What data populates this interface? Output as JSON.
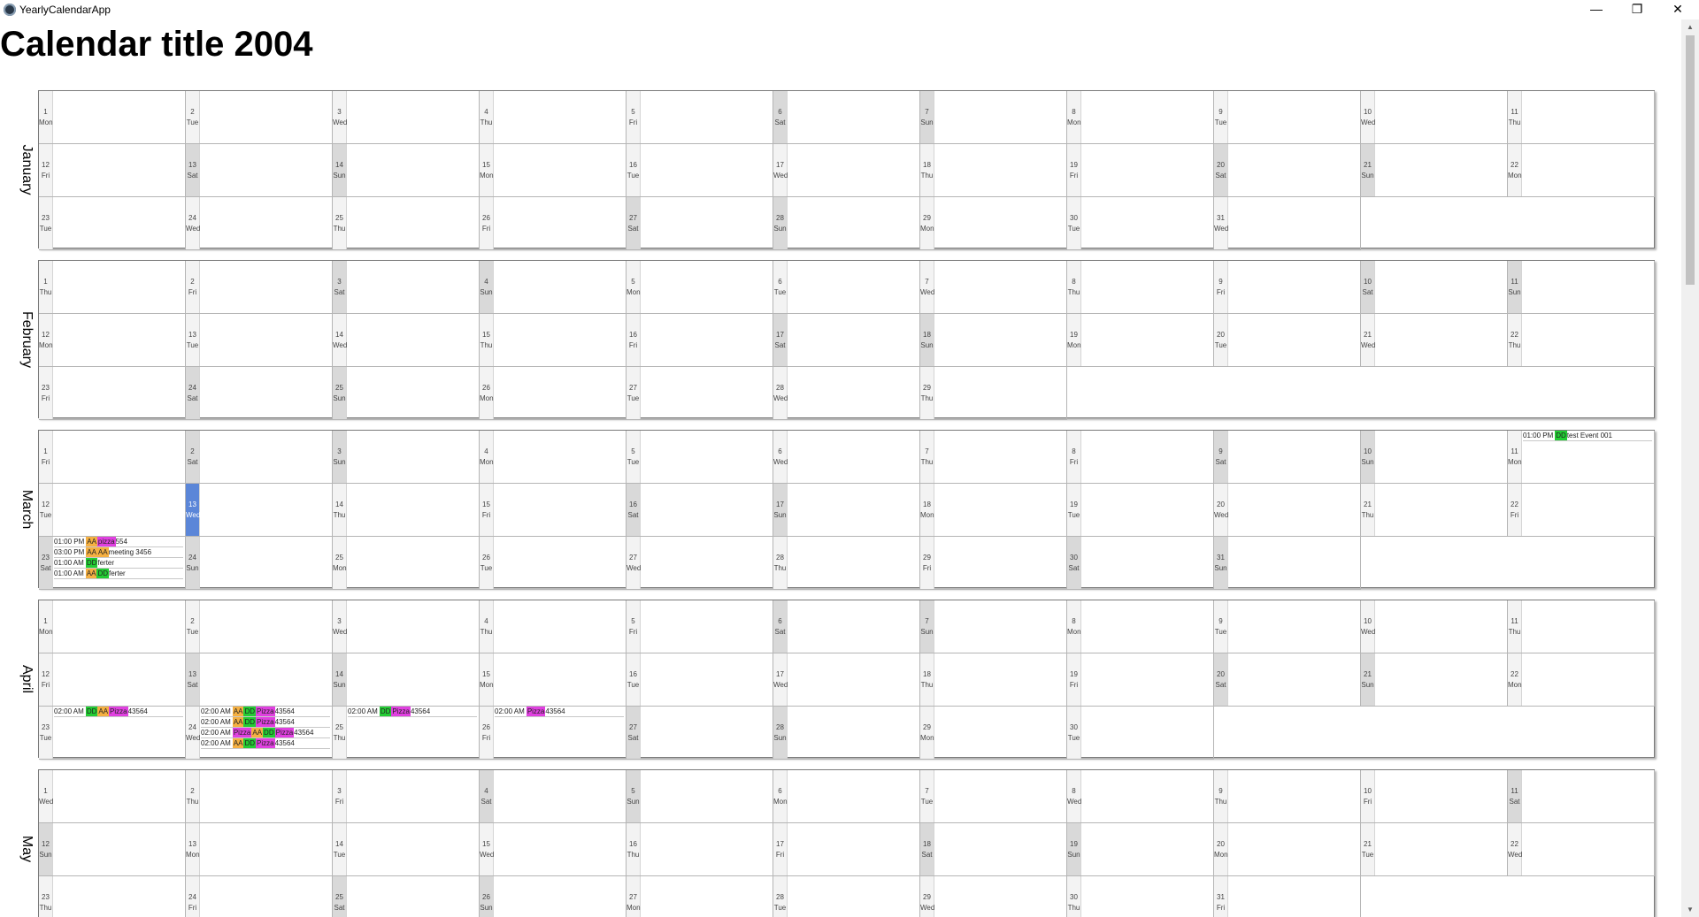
{
  "window": {
    "title": "YearlyCalendarApp",
    "minimize": "—",
    "restore": "❐",
    "close": "✕"
  },
  "calendar_title": "Calendar title 2004",
  "colors": {
    "weekend": "#d9d9d9",
    "weekday": "#f3f3f3",
    "today": "#5b86d8",
    "AA": "#f5b042",
    "DD": "#22cc33",
    "Pizza": "#e040e0"
  },
  "months": [
    {
      "name": "January",
      "first_weekday": 0,
      "days": 31,
      "weekend_days": [
        6,
        7,
        13,
        14,
        20,
        21,
        27,
        28
      ]
    },
    {
      "name": "February",
      "first_weekday": 3,
      "days": 29,
      "weekend_days": [
        3,
        4,
        10,
        11,
        17,
        18,
        24,
        25
      ]
    },
    {
      "name": "March",
      "first_weekday": 4,
      "days": 31,
      "weekend_days": [
        2,
        3,
        9,
        10,
        16,
        17,
        23,
        24,
        30,
        31
      ],
      "today": 13
    },
    {
      "name": "April",
      "first_weekday": 0,
      "days": 30,
      "weekend_days": [
        6,
        7,
        13,
        14,
        20,
        21,
        27,
        28
      ]
    },
    {
      "name": "May",
      "first_weekday": 2,
      "days": 31,
      "weekend_days": [
        4,
        5,
        11,
        12,
        18,
        19,
        25,
        26
      ]
    }
  ],
  "weekdays": [
    "Mon",
    "Tue",
    "Wed",
    "Thu",
    "Fri",
    "Sat",
    "Sun"
  ],
  "events": [
    {
      "month": 2,
      "day": 11,
      "items": [
        {
          "time": "01:00 PM",
          "tags": [
            "DD"
          ],
          "text": "test Event 001"
        }
      ]
    },
    {
      "month": 2,
      "day": 23,
      "items": [
        {
          "time": "01:00 PM",
          "tags": [
            "AA",
            "Pizza"
          ],
          "text": "554",
          "tag_labels": [
            "AA",
            "pizza"
          ]
        },
        {
          "time": "03:00 PM",
          "tags": [
            "AA",
            "AA"
          ],
          "text": "meeting 3456"
        },
        {
          "time": "01:00 AM",
          "tags": [
            "DD"
          ],
          "text": "ferter"
        },
        {
          "time": "01:00 AM",
          "tags": [
            "AA",
            "DD"
          ],
          "text": "ferter"
        }
      ]
    },
    {
      "month": 3,
      "day": 23,
      "items": [
        {
          "time": "02:00 AM",
          "tags": [
            "DD",
            "AA",
            "Pizza"
          ],
          "text": "43564"
        }
      ]
    },
    {
      "month": 3,
      "day": 24,
      "items": [
        {
          "time": "02:00 AM",
          "tags": [
            "AA",
            "DD",
            "Pizza"
          ],
          "text": "43564"
        },
        {
          "time": "02:00 AM",
          "tags": [
            "AA",
            "DD",
            "Pizza"
          ],
          "text": "43564"
        },
        {
          "time": "02:00 AM",
          "tags": [
            "Pizza",
            "AA",
            "DD",
            "Pizza"
          ],
          "text": "43564"
        },
        {
          "time": "02:00 AM",
          "tags": [
            "AA",
            "DD",
            "Pizza"
          ],
          "text": "43564"
        }
      ]
    },
    {
      "month": 3,
      "day": 25,
      "items": [
        {
          "time": "02:00 AM",
          "tags": [
            "DD",
            "Pizza"
          ],
          "text": "43564"
        }
      ]
    },
    {
      "month": 3,
      "day": 26,
      "items": [
        {
          "time": "02:00 AM",
          "tags": [
            "Pizza"
          ],
          "text": "43564"
        }
      ]
    }
  ],
  "scrollbar": {
    "up": "▲",
    "down": "▼"
  }
}
